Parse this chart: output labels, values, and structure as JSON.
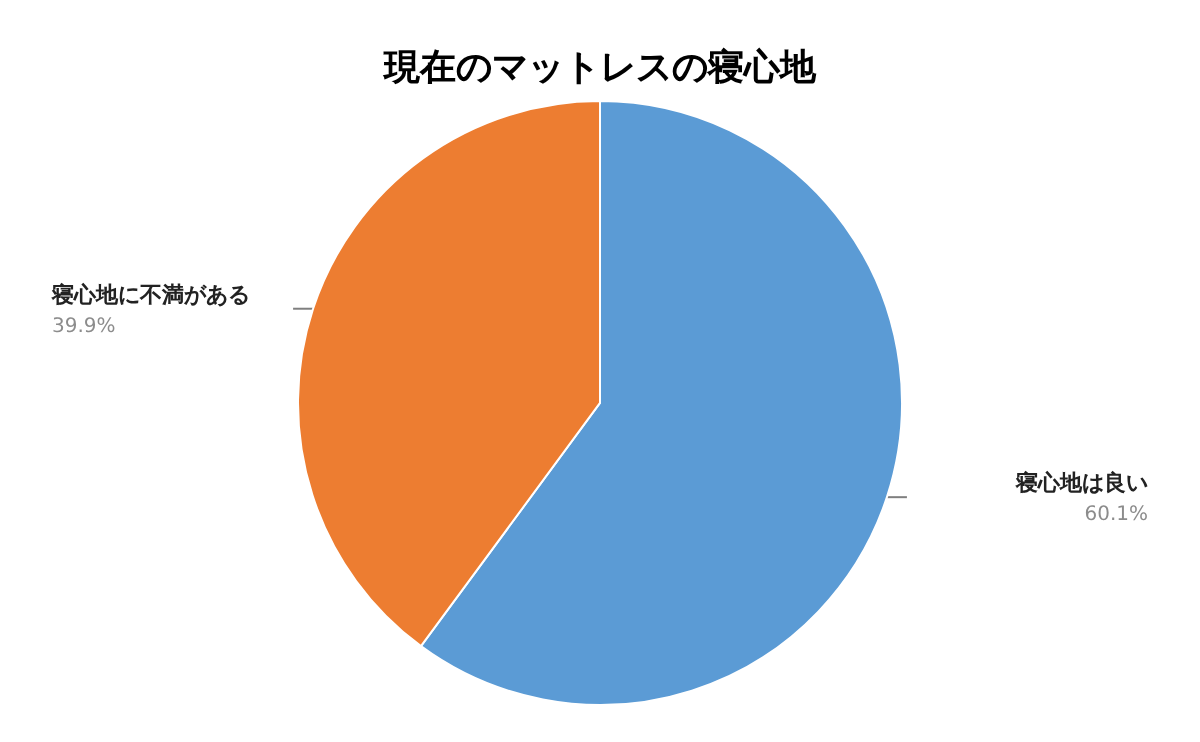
{
  "chart_data": {
    "type": "pie",
    "title": "現在のマットレスの寝心地",
    "categories": [
      "寝心地は良い",
      "寝心地に不満がある"
    ],
    "values": [
      60.1,
      39.9
    ],
    "colors": [
      "#5b9bd5",
      "#ed7d31"
    ],
    "value_labels": [
      "60.1%",
      "39.9%"
    ],
    "legend": false
  }
}
